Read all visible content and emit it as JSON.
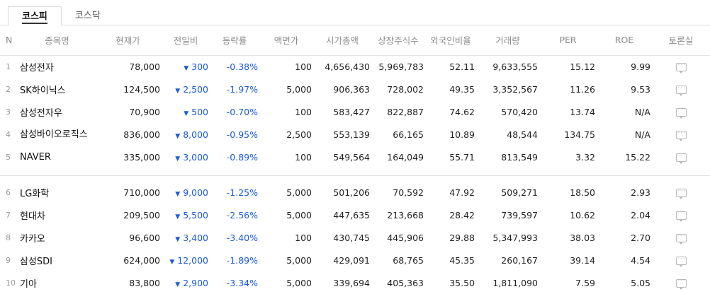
{
  "tabs": [
    {
      "label": "코스피",
      "active": true
    },
    {
      "label": "코스닥",
      "active": false
    }
  ],
  "columns": [
    "N",
    "종목명",
    "현재가",
    "전일비",
    "등락률",
    "액면가",
    "시가총액",
    "상장주식수",
    "외국인비율",
    "거래량",
    "PER",
    "ROE",
    "토론실"
  ],
  "colors": {
    "down": "#1a5ad7",
    "header_text": "#8a8a8a",
    "border": "#d9d9d9"
  },
  "rows": [
    {
      "n": "1",
      "name": "삼성전자",
      "price": "78,000",
      "diff": "300",
      "diff_dir": "down",
      "rate": "-0.38%",
      "face": "100",
      "mcap": "4,656,430",
      "shares": "5,969,783",
      "foreign": "52.11",
      "volume": "9,633,555",
      "per": "15.12",
      "roe": "9.99"
    },
    {
      "n": "2",
      "name": "SK하이닉스",
      "price": "124,500",
      "diff": "2,500",
      "diff_dir": "down",
      "rate": "-1.97%",
      "face": "5,000",
      "mcap": "906,363",
      "shares": "728,002",
      "foreign": "49.35",
      "volume": "3,352,567",
      "per": "11.26",
      "roe": "9.53"
    },
    {
      "n": "3",
      "name": "삼성전자우",
      "price": "70,900",
      "diff": "500",
      "diff_dir": "down",
      "rate": "-0.70%",
      "face": "100",
      "mcap": "583,427",
      "shares": "822,887",
      "foreign": "74.62",
      "volume": "570,420",
      "per": "13.74",
      "roe": "N/A"
    },
    {
      "n": "4",
      "name": "삼성바이오로직스",
      "price": "836,000",
      "diff": "8,000",
      "diff_dir": "down",
      "rate": "-0.95%",
      "face": "2,500",
      "mcap": "553,139",
      "shares": "66,165",
      "foreign": "10.89",
      "volume": "48,544",
      "per": "134.75",
      "roe": "N/A"
    },
    {
      "n": "5",
      "name": "NAVER",
      "price": "335,000",
      "diff": "3,000",
      "diff_dir": "down",
      "rate": "-0.89%",
      "face": "100",
      "mcap": "549,564",
      "shares": "164,049",
      "foreign": "55.71",
      "volume": "813,549",
      "per": "3.32",
      "roe": "15.22"
    },
    {
      "n": "6",
      "name": "LG화학",
      "price": "710,000",
      "diff": "9,000",
      "diff_dir": "down",
      "rate": "-1.25%",
      "face": "5,000",
      "mcap": "501,206",
      "shares": "70,592",
      "foreign": "47.92",
      "volume": "509,271",
      "per": "18.50",
      "roe": "2.93"
    },
    {
      "n": "7",
      "name": "현대차",
      "price": "209,500",
      "diff": "5,500",
      "diff_dir": "down",
      "rate": "-2.56%",
      "face": "5,000",
      "mcap": "447,635",
      "shares": "213,668",
      "foreign": "28.42",
      "volume": "739,597",
      "per": "10.62",
      "roe": "2.04"
    },
    {
      "n": "8",
      "name": "카카오",
      "price": "96,600",
      "diff": "3,400",
      "diff_dir": "down",
      "rate": "-3.40%",
      "face": "100",
      "mcap": "430,745",
      "shares": "445,906",
      "foreign": "29.88",
      "volume": "5,347,993",
      "per": "38.03",
      "roe": "2.70"
    },
    {
      "n": "9",
      "name": "삼성SDI",
      "price": "624,000",
      "diff": "12,000",
      "diff_dir": "down",
      "rate": "-1.89%",
      "face": "5,000",
      "mcap": "429,091",
      "shares": "68,765",
      "foreign": "45.35",
      "volume": "260,167",
      "per": "39.14",
      "roe": "4.54"
    },
    {
      "n": "10",
      "name": "기아",
      "price": "83,800",
      "diff": "2,900",
      "diff_dir": "down",
      "rate": "-3.34%",
      "face": "5,000",
      "mcap": "339,694",
      "shares": "405,363",
      "foreign": "35.50",
      "volume": "1,811,090",
      "per": "7.59",
      "roe": "5.05"
    }
  ]
}
